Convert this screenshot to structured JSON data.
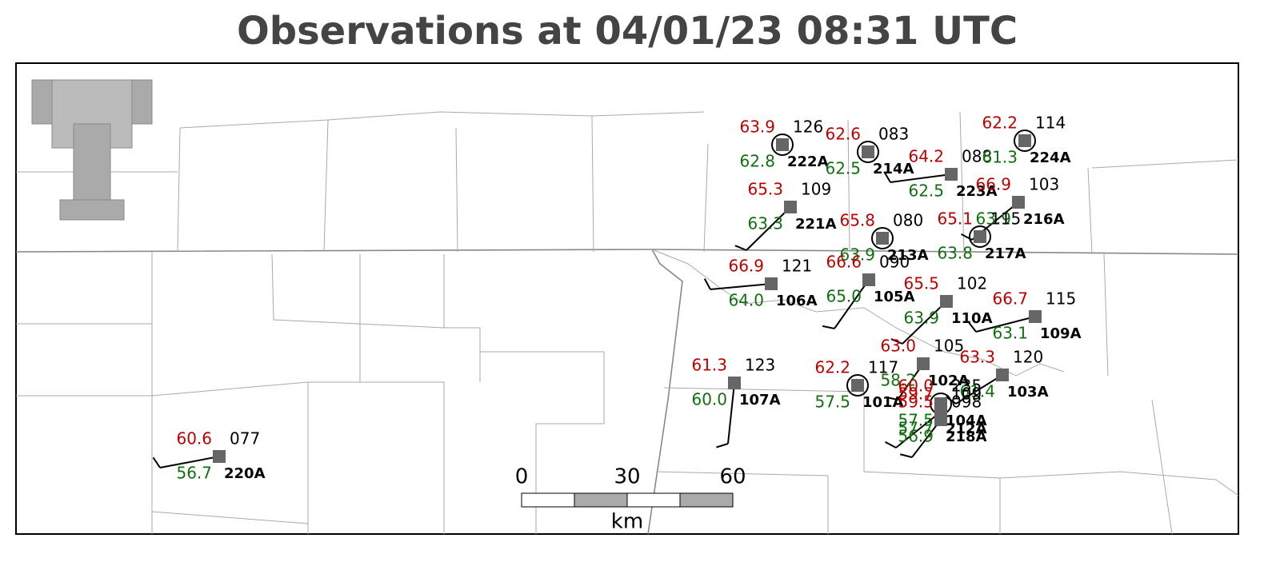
{
  "header": {
    "title": "Observations at 04/01/23 08:31 UTC"
  },
  "stations": [
    {
      "id": "222A",
      "temperature": "63.9",
      "dewpoint": "62.8",
      "pressure": "126"
    },
    {
      "id": "214A",
      "temperature": "62.6",
      "dewpoint": "62.5",
      "pressure": "083"
    },
    {
      "id": "223A",
      "temperature": "64.2",
      "dewpoint": "62.5",
      "pressure": "088"
    },
    {
      "id": "224A",
      "temperature": "62.2",
      "dewpoint": "61.3",
      "pressure": "114"
    },
    {
      "id": "221A",
      "temperature": "65.3",
      "dewpoint": "63.3",
      "pressure": "109"
    },
    {
      "id": "216A",
      "temperature": "66.9",
      "dewpoint": "63.9",
      "pressure": "103"
    },
    {
      "id": "213A",
      "temperature": "65.8",
      "dewpoint": "63.9",
      "pressure": "080"
    },
    {
      "id": "217A",
      "temperature": "65.1",
      "dewpoint": "63.8",
      "pressure": "115"
    },
    {
      "id": "106A",
      "temperature": "66.9",
      "dewpoint": "64.0",
      "pressure": "121"
    },
    {
      "id": "105A",
      "temperature": "66.6",
      "dewpoint": "65.0",
      "pressure": "090"
    },
    {
      "id": "110A",
      "temperature": "65.5",
      "dewpoint": "63.9",
      "pressure": "102"
    },
    {
      "id": "109A",
      "temperature": "66.7",
      "dewpoint": "63.1",
      "pressure": "115"
    },
    {
      "id": "107A",
      "temperature": "61.3",
      "dewpoint": "60.0",
      "pressure": "123"
    },
    {
      "id": "101A",
      "temperature": "62.2",
      "dewpoint": "57.5",
      "pressure": "117"
    },
    {
      "id": "102A",
      "temperature": "63.0",
      "dewpoint": "58.2",
      "pressure": "105"
    },
    {
      "id": "103A",
      "temperature": "63.3",
      "dewpoint": "61.4",
      "pressure": "120"
    },
    {
      "id": "104A",
      "temperature": "60.0",
      "dewpoint": "57.5",
      "pressure": "235"
    },
    {
      "id": "212A",
      "temperature": "59.7",
      "dewpoint": "57.7",
      "pressure": "109"
    },
    {
      "id": "218A",
      "temperature": "59.5",
      "dewpoint": "56.9",
      "pressure": "098"
    },
    {
      "id": "220A",
      "temperature": "60.6",
      "dewpoint": "56.7",
      "pressure": "077"
    }
  ],
  "scale_bar": {
    "labels": [
      "0",
      "30",
      "60"
    ],
    "unit": "km"
  }
}
